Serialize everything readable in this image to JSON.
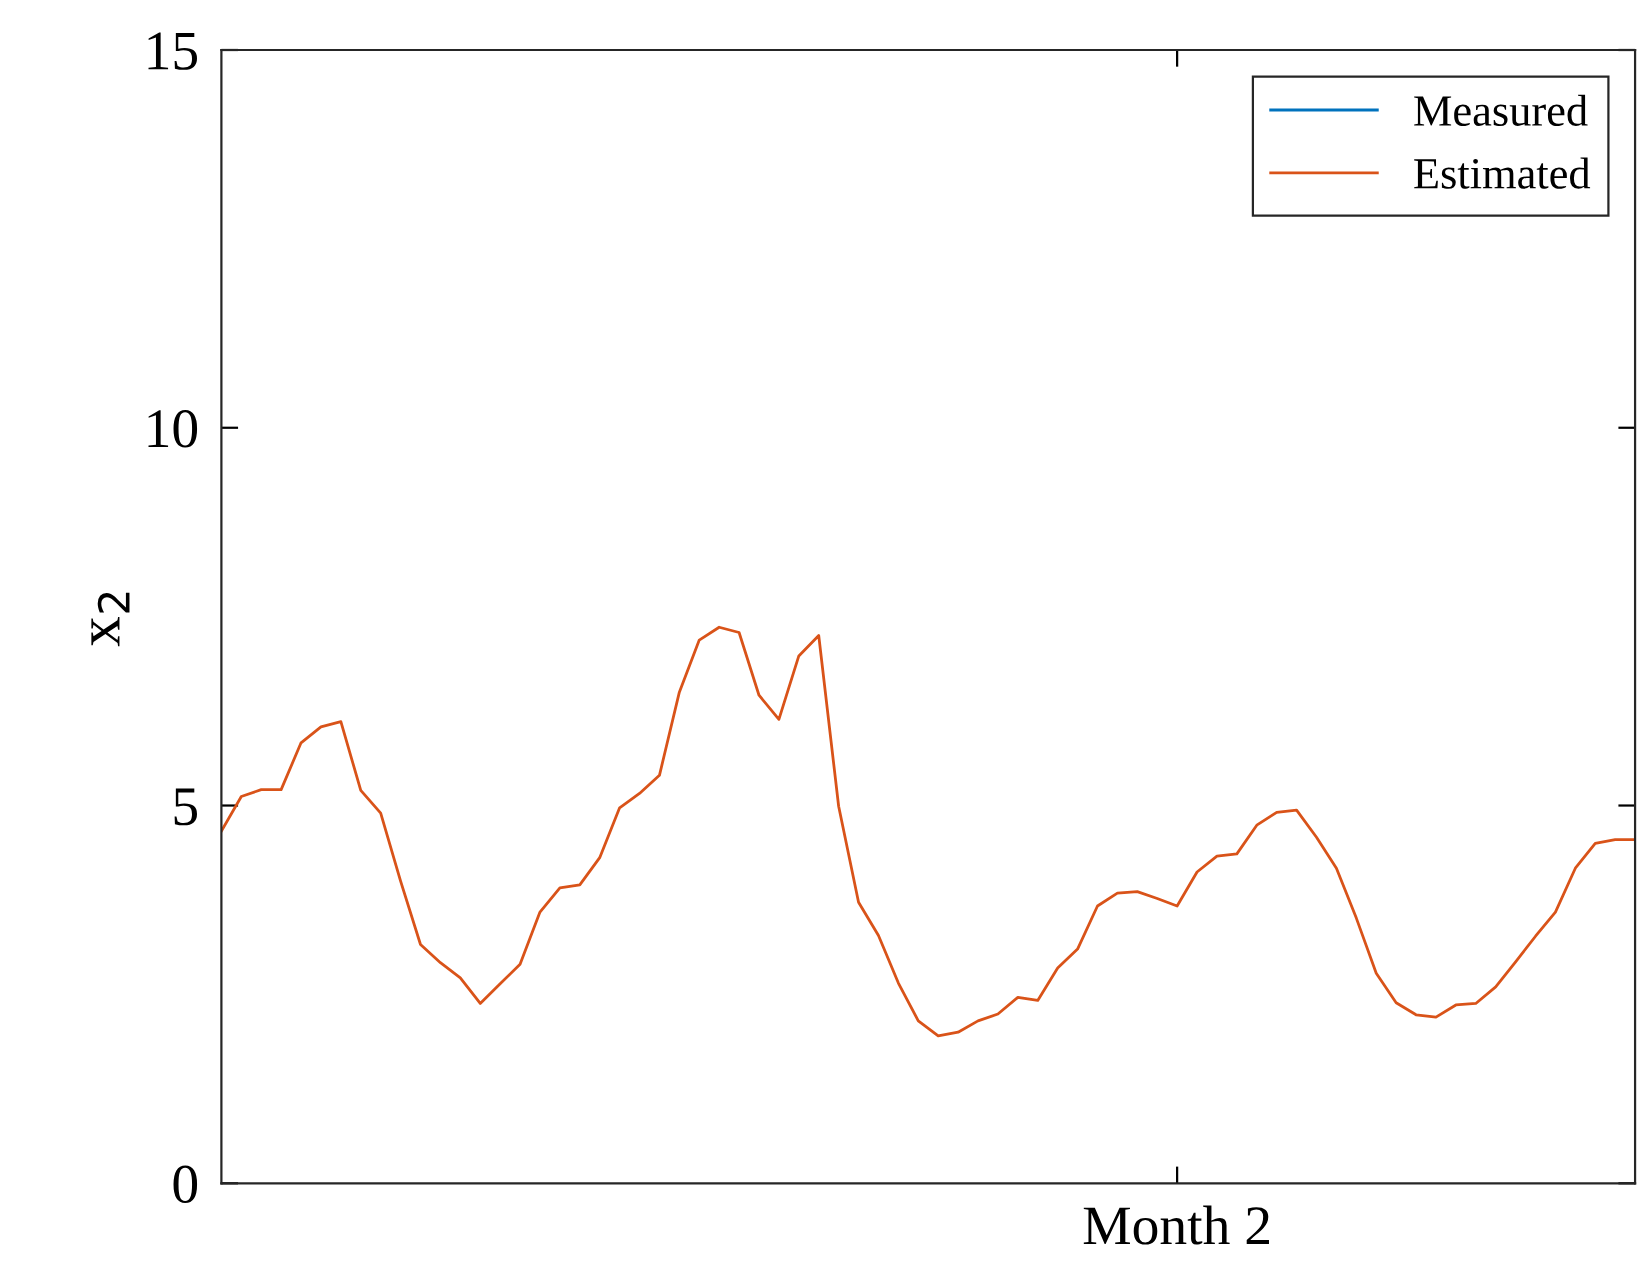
{
  "chart_data": {
    "type": "line",
    "ylabel": "x$_{2}$",
    "categories": [
      null,
      null,
      null,
      null,
      null,
      null,
      null,
      null,
      null,
      null,
      null,
      null,
      null,
      null,
      null,
      null,
      null,
      null,
      null,
      null,
      null,
      null,
      null,
      null,
      null,
      null,
      null,
      null,
      null,
      null,
      null,
      null,
      null,
      null,
      null,
      null,
      null,
      null,
      null,
      null,
      null,
      null,
      null,
      null,
      null,
      null,
      null,
      null,
      "Month 2",
      null,
      null,
      null,
      null,
      null,
      null,
      null,
      null,
      null,
      null,
      null,
      null,
      null,
      null,
      null,
      null,
      null,
      null,
      null,
      null,
      null,
      null,
      null
    ],
    "series": [
      {
        "name": "Measured",
        "color": "#0072bd",
        "values": [
          null,
          null,
          null,
          null,
          null,
          null,
          null,
          null,
          null,
          null,
          null,
          null,
          null,
          null,
          null,
          null,
          null,
          null,
          null,
          null,
          null,
          null,
          null,
          null,
          null,
          null,
          null,
          null,
          null,
          null,
          null,
          null,
          null,
          null,
          null,
          null,
          null,
          null,
          null,
          null,
          null,
          null,
          null,
          null,
          null,
          null,
          null,
          null,
          null,
          null,
          null,
          null,
          null,
          null,
          null,
          null,
          null,
          null,
          null,
          null,
          null,
          null,
          null,
          null,
          null,
          null,
          null,
          null,
          null,
          null,
          null,
          null
        ]
      },
      {
        "name": "Estimated",
        "color": "#d95319",
        "values": [
          4.66,
          5.12,
          5.21,
          5.21,
          5.83,
          6.04,
          6.11,
          5.2,
          4.9,
          4.0,
          3.16,
          2.92,
          2.72,
          2.38,
          2.64,
          2.9,
          3.59,
          3.91,
          3.95,
          4.31,
          4.97,
          5.16,
          5.4,
          6.5,
          7.19,
          7.36,
          7.29,
          6.46,
          6.14,
          6.98,
          7.25,
          4.99,
          3.72,
          3.28,
          2.65,
          2.15,
          1.95,
          2.0,
          2.15,
          2.24,
          2.46,
          2.42,
          2.85,
          3.1,
          3.67,
          3.84,
          3.86,
          3.77,
          3.67,
          4.12,
          4.33,
          4.36,
          4.74,
          4.91,
          4.94,
          4.58,
          4.17,
          3.51,
          2.78,
          2.39,
          2.23,
          2.2,
          2.36,
          2.38,
          2.6,
          2.93,
          3.27,
          3.59,
          4.17,
          4.5,
          4.55,
          4.55
        ]
      }
    ],
    "ylim": [
      0,
      15
    ],
    "yticks": [
      0,
      5,
      10,
      15
    ],
    "grid": false,
    "legend": "top right",
    "marker": "none",
    "line_style": "solid"
  }
}
